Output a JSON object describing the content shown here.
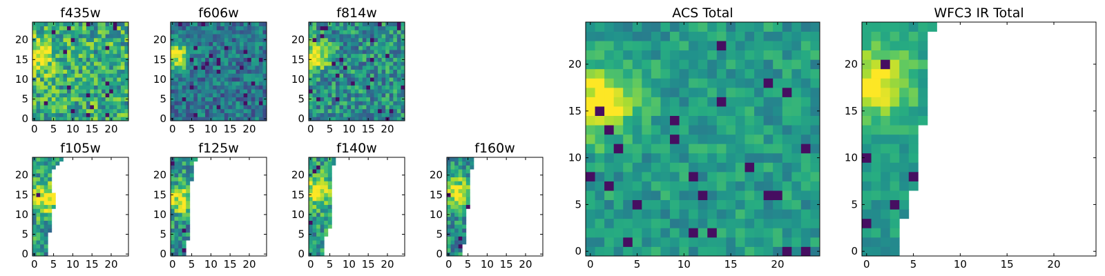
{
  "chart_data": {
    "type": "heatmap",
    "colormap": "viridis",
    "grid": false,
    "panels": [
      {
        "id": "f435w",
        "title": "f435w",
        "xlim": [
          -0.5,
          24.5
        ],
        "ylim": [
          -0.5,
          24.5
        ],
        "xticks": [
          0,
          5,
          10,
          15,
          20
        ],
        "yticks": [
          0,
          5,
          10,
          15,
          20
        ],
        "coverage": "full",
        "bright_spot": {
          "x": 1,
          "y": 16
        },
        "seed": 11,
        "level": 0.62,
        "noise": 0.55
      },
      {
        "id": "f606w",
        "title": "f606w",
        "xlim": [
          -0.5,
          24.5
        ],
        "ylim": [
          -0.5,
          24.5
        ],
        "xticks": [
          0,
          5,
          10,
          15,
          20
        ],
        "yticks": [
          0,
          5,
          10,
          15,
          20
        ],
        "coverage": "full",
        "bright_spot": {
          "x": 1,
          "y": 16
        },
        "seed": 23,
        "level": 0.4,
        "noise": 0.4
      },
      {
        "id": "f814w",
        "title": "f814w",
        "xlim": [
          -0.5,
          24.5
        ],
        "ylim": [
          -0.5,
          24.5
        ],
        "xticks": [
          0,
          5,
          10,
          15,
          20
        ],
        "yticks": [
          0,
          5,
          10,
          15,
          20
        ],
        "coverage": "full",
        "bright_spot": {
          "x": 1,
          "y": 16
        },
        "seed": 37,
        "level": 0.5,
        "noise": 0.5
      },
      {
        "id": "f105w",
        "title": "f105w",
        "xlim": [
          -0.5,
          24.5
        ],
        "ylim": [
          -0.5,
          24.5
        ],
        "xticks": [
          0,
          5,
          10,
          15,
          20
        ],
        "yticks": [
          0,
          5,
          10,
          15,
          20
        ],
        "coverage": "left-strip",
        "coverage_cols": [
          4,
          4,
          4,
          4,
          4,
          4,
          5,
          5,
          5,
          5,
          5,
          5,
          6,
          6,
          6,
          6,
          5,
          5,
          5,
          5,
          5,
          5,
          6,
          7,
          8
        ],
        "bright_spot": {
          "x": 3,
          "y": 14
        },
        "seed": 41,
        "level": 0.55,
        "noise": 0.5
      },
      {
        "id": "f125w",
        "title": "f125w",
        "xlim": [
          -0.5,
          24.5
        ],
        "ylim": [
          -0.5,
          24.5
        ],
        "xticks": [
          0,
          5,
          10,
          15,
          20
        ],
        "yticks": [
          0,
          5,
          10,
          15,
          20
        ],
        "coverage": "left-strip",
        "coverage_cols": [
          4,
          4,
          4,
          4,
          5,
          5,
          5,
          5,
          5,
          5,
          5,
          5,
          5,
          5,
          5,
          5,
          5,
          5,
          5,
          6,
          6,
          6,
          6,
          6,
          7
        ],
        "bright_spot": {
          "x": 2,
          "y": 14
        },
        "seed": 53,
        "level": 0.5,
        "noise": 0.5
      },
      {
        "id": "f140w",
        "title": "f140w",
        "xlim": [
          -0.5,
          24.5
        ],
        "ylim": [
          -0.5,
          24.5
        ],
        "xticks": [
          0,
          5,
          10,
          15,
          20
        ],
        "yticks": [
          0,
          5,
          10,
          15,
          20
        ],
        "coverage": "left-strip",
        "coverage_cols": [
          4,
          4,
          4,
          4,
          4,
          5,
          5,
          6,
          6,
          6,
          6,
          6,
          6,
          6,
          6,
          6,
          6,
          6,
          6,
          6,
          6,
          6,
          6,
          7,
          7
        ],
        "bright_spot": {
          "x": 2,
          "y": 16
        },
        "seed": 61,
        "level": 0.55,
        "noise": 0.45
      },
      {
        "id": "f160w",
        "title": "f160w",
        "xlim": [
          -0.5,
          24.5
        ],
        "ylim": [
          -0.5,
          24.5
        ],
        "xticks": [
          0,
          5,
          10,
          15,
          20
        ],
        "yticks": [
          0,
          5,
          10,
          15,
          20
        ],
        "coverage": "left-strip",
        "coverage_cols": [
          4,
          4,
          4,
          5,
          5,
          5,
          5,
          5,
          5,
          5,
          5,
          5,
          6,
          6,
          6,
          6,
          6,
          6,
          6,
          6,
          6,
          6,
          7,
          7,
          7
        ],
        "bright_spot": {
          "x": 2,
          "y": 16
        },
        "seed": 71,
        "level": 0.5,
        "noise": 0.45
      },
      {
        "id": "acs-total",
        "title": "ACS Total",
        "xlim": [
          -0.5,
          24.5
        ],
        "ylim": [
          -0.5,
          24.5
        ],
        "xticks": [
          0,
          5,
          10,
          15,
          20
        ],
        "yticks": [
          0,
          5,
          10,
          15,
          20
        ],
        "coverage": "full",
        "bright_spot": {
          "x": 1,
          "y": 16
        },
        "seed": 83,
        "level": 0.55,
        "noise": 0.28
      },
      {
        "id": "wfc3-ir-total",
        "title": "WFC3 IR Total",
        "xlim": [
          -0.5,
          24.5
        ],
        "ylim": [
          -0.5,
          24.5
        ],
        "xticks": [
          0,
          5,
          10,
          15,
          20
        ],
        "yticks": [
          0,
          5,
          10,
          15,
          20
        ],
        "coverage": "left-strip",
        "coverage_cols": [
          4,
          4,
          4,
          4,
          5,
          5,
          5,
          6,
          6,
          6,
          6,
          6,
          6,
          6,
          7,
          7,
          7,
          7,
          7,
          7,
          7,
          7,
          7,
          7,
          8
        ],
        "bright_spot": {
          "x": 1,
          "y": 18
        },
        "seed": 97,
        "level": 0.55,
        "noise": 0.22
      }
    ]
  }
}
